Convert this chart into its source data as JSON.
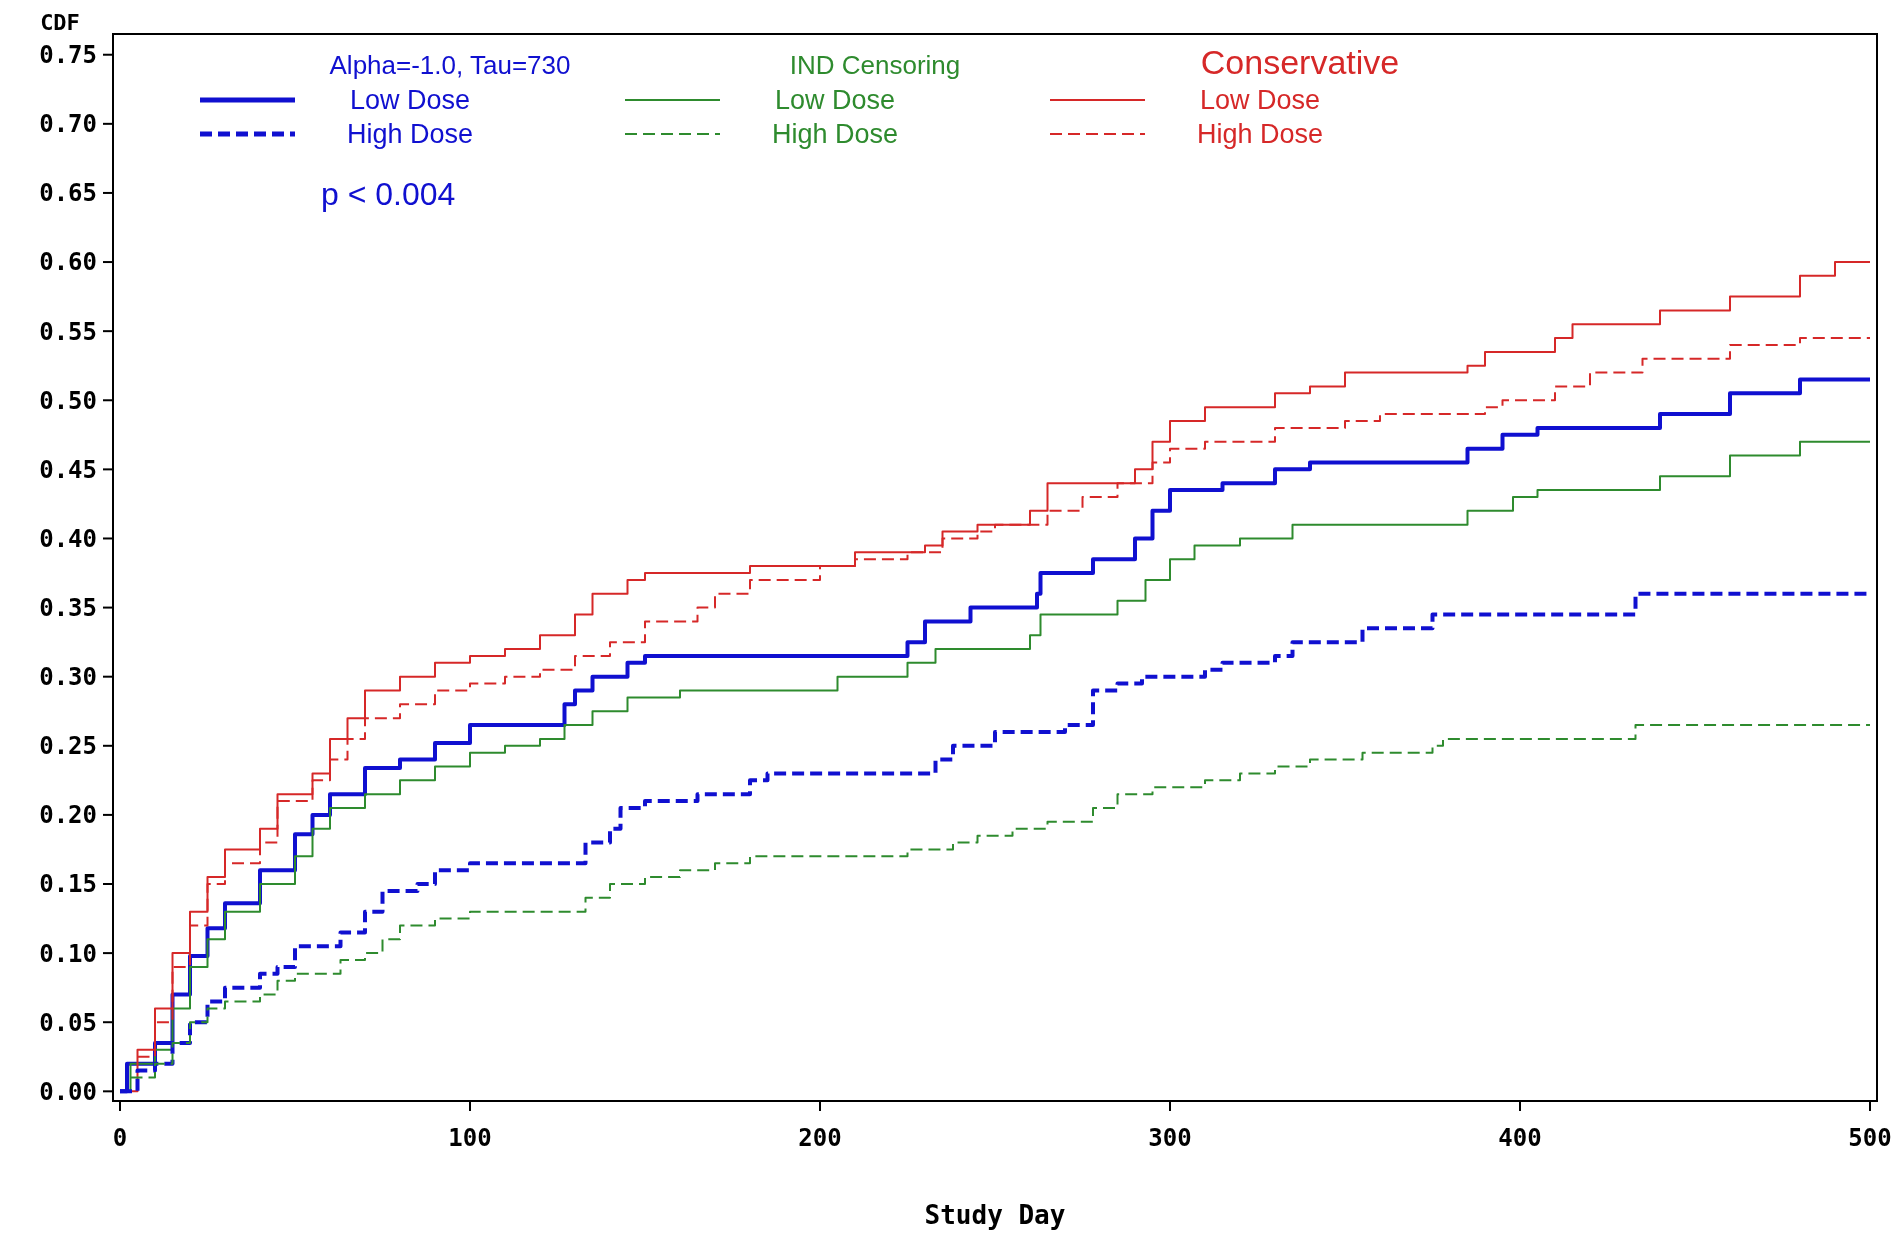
{
  "chart_data": {
    "type": "step",
    "xlabel": "Study Day",
    "ylabel": "CDF",
    "xlim": [
      -2,
      502
    ],
    "ylim": [
      -0.007,
      0.765
    ],
    "xticks": [
      0,
      100,
      200,
      300,
      400,
      500
    ],
    "yticks": [
      {
        "value": 0,
        "label": "0.00"
      },
      {
        "value": 0.05,
        "label": "0.05"
      },
      {
        "value": 0.1,
        "label": "0.10"
      },
      {
        "value": 0.15,
        "label": "0.15"
      },
      {
        "value": 0.2,
        "label": "0.20"
      },
      {
        "value": 0.25,
        "label": "0.25"
      },
      {
        "value": 0.3,
        "label": "0.30"
      },
      {
        "value": 0.35,
        "label": "0.35"
      },
      {
        "value": 0.4,
        "label": "0.40"
      },
      {
        "value": 0.45,
        "label": "0.45"
      },
      {
        "value": 0.5,
        "label": "0.50"
      },
      {
        "value": 0.55,
        "label": "0.55"
      },
      {
        "value": 0.6,
        "label": "0.60"
      },
      {
        "value": 0.65,
        "label": "0.65"
      },
      {
        "value": 0.7,
        "label": "0.70"
      },
      {
        "value": 0.75,
        "label": "0.75"
      }
    ],
    "grid": false,
    "legend": "top left",
    "marker": "none",
    "annotations": [
      "Alpha=-1.0, Tau=730",
      "IND Censoring",
      "Conservative",
      {
        "text": "p < 0.004"
      }
    ],
    "series": [
      {
        "name": "Low Dose",
        "color": "#1010d0",
        "line_style": "solid",
        "x": [
          0,
          2,
          10,
          15,
          20,
          25,
          30,
          40,
          50,
          55,
          60,
          70,
          80,
          90,
          100,
          127,
          130,
          135,
          145,
          150,
          225,
          230,
          243,
          262,
          263,
          278,
          290,
          295,
          300,
          315,
          330,
          340,
          385,
          395,
          405,
          440,
          460,
          480,
          500
        ],
        "values": [
          0,
          0.02,
          0.035,
          0.07,
          0.098,
          0.118,
          0.136,
          0.16,
          0.186,
          0.2,
          0.215,
          0.234,
          0.24,
          0.252,
          0.265,
          0.28,
          0.29,
          0.3,
          0.31,
          0.315,
          0.325,
          0.34,
          0.35,
          0.36,
          0.375,
          0.385,
          0.4,
          0.42,
          0.435,
          0.44,
          0.45,
          0.455,
          0.465,
          0.475,
          0.48,
          0.49,
          0.505,
          0.515,
          0.515
        ]
      },
      {
        "name": "High Dose",
        "color": "#1010d0",
        "line_style": "dashed",
        "x": [
          0,
          5,
          10,
          15,
          20,
          25,
          30,
          40,
          45,
          50,
          63,
          70,
          75,
          85,
          90,
          100,
          133,
          140,
          143,
          150,
          165,
          180,
          185,
          233,
          238,
          250,
          270,
          278,
          285,
          292,
          310,
          315,
          330,
          335,
          355,
          375,
          433,
          500
        ],
        "values": [
          0,
          0.015,
          0.02,
          0.035,
          0.05,
          0.065,
          0.075,
          0.085,
          0.09,
          0.105,
          0.115,
          0.13,
          0.145,
          0.15,
          0.16,
          0.165,
          0.18,
          0.19,
          0.205,
          0.21,
          0.215,
          0.225,
          0.23,
          0.24,
          0.25,
          0.26,
          0.265,
          0.29,
          0.295,
          0.3,
          0.305,
          0.31,
          0.315,
          0.325,
          0.335,
          0.345,
          0.36,
          0.36
        ]
      },
      {
        "name": "Low Dose",
        "color": "#2e8b2e",
        "line_style": "solid",
        "x": [
          0,
          3,
          10,
          15,
          20,
          25,
          30,
          40,
          50,
          55,
          60,
          70,
          80,
          90,
          100,
          110,
          120,
          127,
          135,
          145,
          160,
          205,
          225,
          233,
          260,
          263,
          285,
          293,
          300,
          307,
          320,
          335,
          385,
          398,
          405,
          440,
          460,
          480,
          500
        ],
        "values": [
          0,
          0.02,
          0.03,
          0.06,
          0.09,
          0.11,
          0.13,
          0.15,
          0.17,
          0.19,
          0.205,
          0.215,
          0.225,
          0.235,
          0.245,
          0.25,
          0.255,
          0.265,
          0.275,
          0.285,
          0.29,
          0.3,
          0.31,
          0.32,
          0.33,
          0.345,
          0.355,
          0.37,
          0.385,
          0.395,
          0.4,
          0.41,
          0.42,
          0.43,
          0.435,
          0.445,
          0.46,
          0.47,
          0.47
        ]
      },
      {
        "name": "High Dose",
        "color": "#2e8b2e",
        "line_style": "dashed",
        "x": [
          3,
          10,
          15,
          20,
          25,
          30,
          40,
          45,
          50,
          63,
          70,
          75,
          80,
          90,
          100,
          133,
          140,
          150,
          160,
          170,
          180,
          225,
          238,
          245,
          255,
          265,
          278,
          285,
          295,
          310,
          320,
          330,
          340,
          355,
          375,
          378,
          433,
          500
        ],
        "values": [
          0.01,
          0.02,
          0.035,
          0.05,
          0.06,
          0.065,
          0.07,
          0.08,
          0.085,
          0.095,
          0.1,
          0.11,
          0.12,
          0.125,
          0.13,
          0.14,
          0.15,
          0.155,
          0.16,
          0.165,
          0.17,
          0.175,
          0.18,
          0.185,
          0.19,
          0.195,
          0.205,
          0.215,
          0.22,
          0.225,
          0.23,
          0.235,
          0.24,
          0.245,
          0.25,
          0.255,
          0.265,
          0.265
        ]
      },
      {
        "name": "Low Dose",
        "color": "#d62828",
        "line_style": "solid",
        "x": [
          0,
          5,
          10,
          15,
          20,
          25,
          30,
          40,
          45,
          55,
          60,
          65,
          70,
          80,
          90,
          100,
          110,
          120,
          130,
          135,
          145,
          150,
          180,
          210,
          230,
          235,
          245,
          260,
          265,
          290,
          295,
          300,
          310,
          330,
          340,
          350,
          385,
          390,
          410,
          415,
          440,
          460,
          480,
          490,
          500
        ],
        "values": [
          0,
          0.03,
          0.06,
          0.1,
          0.13,
          0.155,
          0.175,
          0.19,
          0.215,
          0.23,
          0.255,
          0.27,
          0.29,
          0.3,
          0.31,
          0.315,
          0.32,
          0.33,
          0.345,
          0.36,
          0.37,
          0.375,
          0.38,
          0.39,
          0.395,
          0.405,
          0.41,
          0.42,
          0.44,
          0.45,
          0.47,
          0.485,
          0.495,
          0.505,
          0.51,
          0.52,
          0.525,
          0.535,
          0.545,
          0.555,
          0.565,
          0.575,
          0.59,
          0.6,
          0.6
        ]
      },
      {
        "name": "High Dose",
        "color": "#d62828",
        "line_style": "dashed",
        "x": [
          5,
          10,
          15,
          20,
          25,
          30,
          40,
          45,
          55,
          60,
          65,
          70,
          80,
          90,
          100,
          110,
          120,
          130,
          140,
          150,
          165,
          170,
          180,
          200,
          210,
          225,
          235,
          245,
          250,
          265,
          275,
          285,
          295,
          300,
          310,
          330,
          350,
          360,
          390,
          395,
          410,
          420,
          435,
          460,
          480,
          500
        ],
        "values": [
          0.025,
          0.05,
          0.09,
          0.12,
          0.15,
          0.165,
          0.18,
          0.21,
          0.225,
          0.24,
          0.255,
          0.27,
          0.28,
          0.29,
          0.295,
          0.3,
          0.305,
          0.315,
          0.325,
          0.34,
          0.35,
          0.36,
          0.37,
          0.38,
          0.385,
          0.39,
          0.4,
          0.405,
          0.41,
          0.42,
          0.43,
          0.44,
          0.455,
          0.465,
          0.47,
          0.48,
          0.485,
          0.49,
          0.495,
          0.5,
          0.51,
          0.52,
          0.53,
          0.54,
          0.545,
          0.545
        ]
      }
    ]
  }
}
